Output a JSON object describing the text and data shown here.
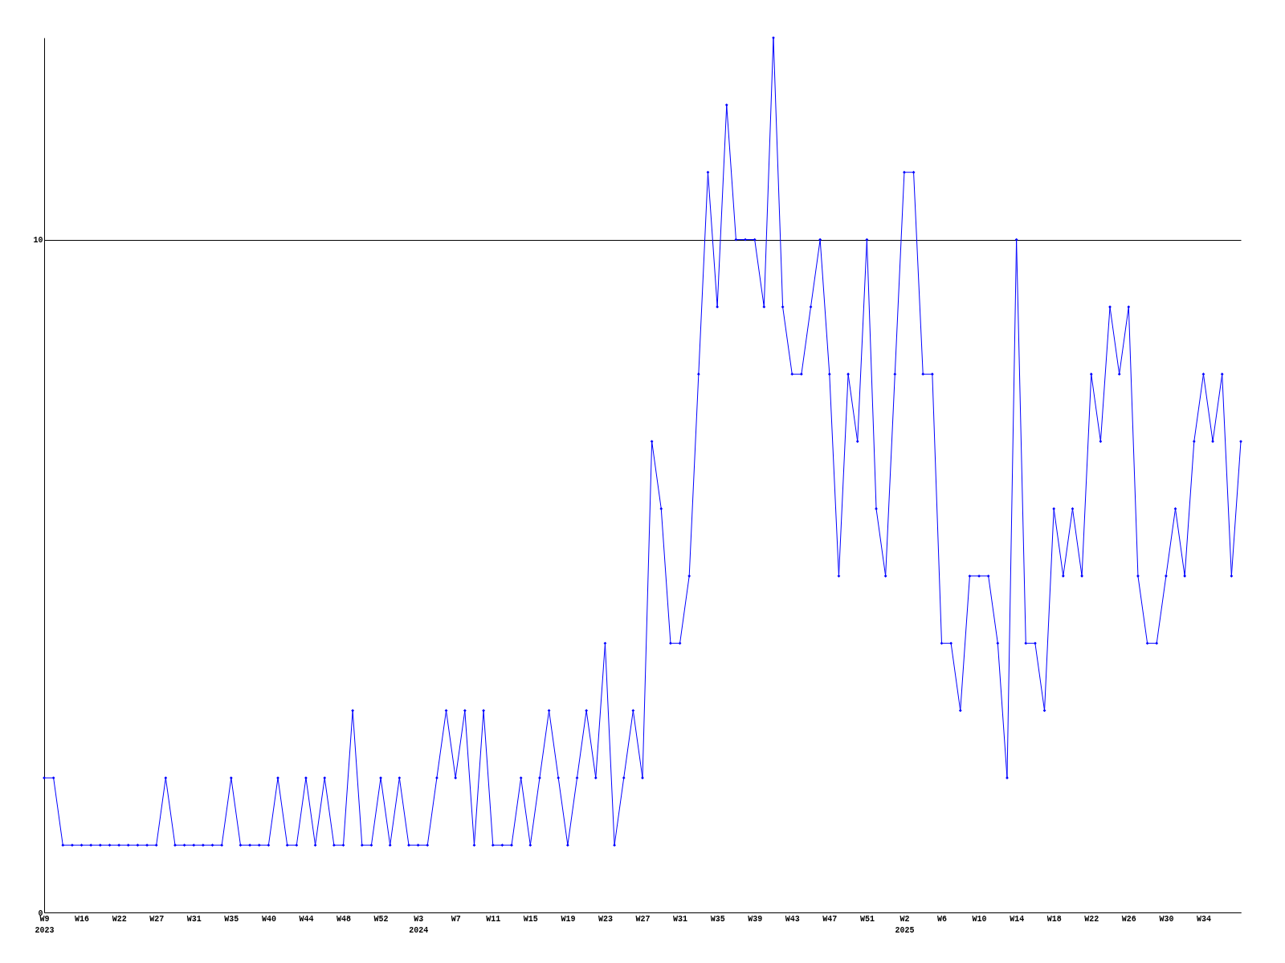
{
  "chart_data": {
    "type": "line",
    "categories": [
      "W9\n2023",
      null,
      null,
      null,
      "W16",
      null,
      null,
      null,
      "W22",
      null,
      null,
      null,
      "W27",
      null,
      null,
      null,
      "W31",
      null,
      null,
      null,
      "W35",
      null,
      null,
      null,
      "W40",
      null,
      null,
      null,
      "W44",
      null,
      null,
      null,
      "W48",
      null,
      null,
      null,
      "W52",
      null,
      null,
      null,
      "W3\n2024",
      null,
      null,
      null,
      "W7",
      null,
      null,
      null,
      "W11",
      null,
      null,
      null,
      "W15",
      null,
      null,
      null,
      "W19",
      null,
      null,
      null,
      "W23",
      null,
      null,
      null,
      "W27",
      null,
      null,
      null,
      "W31",
      null,
      null,
      null,
      "W35",
      null,
      null,
      null,
      "W39",
      null,
      null,
      null,
      "W43",
      null,
      null,
      null,
      "W47",
      null,
      null,
      null,
      "W51",
      null,
      null,
      null,
      "W2\n2025",
      null,
      null,
      null,
      "W6",
      null,
      null,
      null,
      "W10",
      null,
      null,
      null,
      "W14",
      null,
      null,
      null,
      "W18",
      null,
      null,
      null,
      "W22",
      null,
      null,
      null,
      "W26",
      null,
      null,
      null,
      "W30",
      null,
      null,
      null,
      "W34",
      null,
      null,
      null,
      null
    ],
    "series": [
      {
        "color": "#0000ff",
        "values": [
          2,
          2,
          1,
          1,
          1,
          1,
          1,
          1,
          1,
          1,
          1,
          1,
          1,
          2,
          1,
          1,
          1,
          1,
          1,
          1,
          2,
          1,
          1,
          1,
          1,
          2,
          1,
          1,
          2,
          1,
          2,
          1,
          1,
          3,
          1,
          1,
          2,
          1,
          2,
          1,
          1,
          1,
          2,
          3,
          2,
          3,
          1,
          3,
          1,
          1,
          1,
          2,
          1,
          2,
          3,
          2,
          1,
          2,
          3,
          2,
          4,
          1,
          2,
          3,
          2,
          7,
          6,
          4,
          4,
          5,
          8,
          11,
          9,
          12,
          10,
          10,
          10,
          9,
          13,
          9,
          8,
          8,
          9,
          10,
          8,
          5,
          8,
          7,
          10,
          6,
          5,
          8,
          11,
          11,
          8,
          8,
          4,
          4,
          3,
          5,
          5,
          5,
          4,
          2,
          10,
          4,
          4,
          3,
          6,
          5,
          6,
          5,
          8,
          7,
          9,
          8,
          9,
          5,
          4,
          4,
          5,
          6,
          5,
          7,
          8,
          7,
          8,
          5,
          7
        ]
      }
    ],
    "ylim": [
      0,
      13
    ],
    "yticks": [
      0,
      10
    ],
    "grid": "y",
    "marker": "diamond",
    "line_style": "solid"
  }
}
